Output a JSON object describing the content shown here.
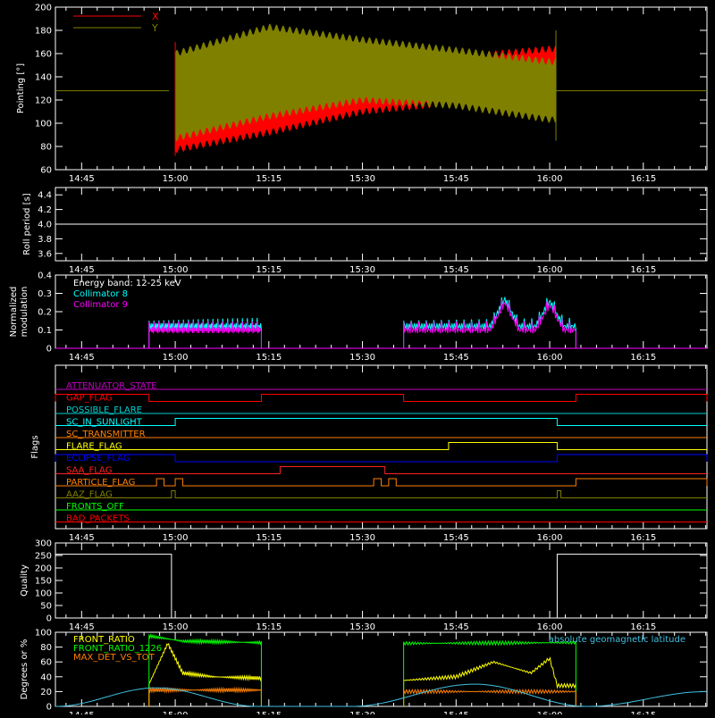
{
  "time_axis": {
    "ticks": [
      "14:45",
      "15:00",
      "15:15",
      "15:30",
      "15:45",
      "16:00",
      "16:15"
    ],
    "range": [
      "14:41",
      "16:25"
    ]
  },
  "colors": {
    "background": "#000000",
    "axes": "#ffffff",
    "red": "#ff0000",
    "olive": "#808000",
    "cyan": "#00ffff",
    "magenta": "#ff00ff",
    "blue": "#0000ff",
    "yellow": "#ffff00",
    "orange": "#ff8000",
    "green": "#00ff00",
    "purple": "#c000c0"
  },
  "chart_data": [
    {
      "type": "area",
      "ylabel": "Pointing [°]",
      "ylim": [
        60,
        200
      ],
      "yticks": [
        "60",
        "80",
        "100",
        "120",
        "140",
        "160",
        "180",
        "200"
      ],
      "legend": [
        "X",
        "Y"
      ],
      "legend_position": "top-left",
      "baseline": 128,
      "data_interval": [
        "14:59",
        "16:01"
      ],
      "series": [
        {
          "name": "X",
          "color": "#ff0000",
          "upper": [
            [
              15.0,
              135
            ],
            [
              15.25,
              140
            ],
            [
              15.5,
              150
            ],
            [
              15.75,
              157
            ],
            [
              16.0,
              164
            ]
          ],
          "lower": [
            [
              15.0,
              77
            ],
            [
              15.25,
              92
            ],
            [
              15.5,
              110
            ],
            [
              15.75,
              118
            ],
            [
              16.0,
              120
            ]
          ]
        },
        {
          "name": "Y",
          "color": "#808000",
          "upper": [
            [
              15.0,
              160
            ],
            [
              15.25,
              183
            ],
            [
              15.5,
              172
            ],
            [
              15.75,
              163
            ],
            [
              16.0,
              153
            ]
          ],
          "lower": [
            [
              15.0,
              87
            ],
            [
              15.25,
              106
            ],
            [
              15.5,
              120
            ],
            [
              15.75,
              115
            ],
            [
              16.0,
              103
            ]
          ]
        }
      ]
    },
    {
      "type": "line",
      "ylabel": "Roll period [s]",
      "ylim": [
        3.5,
        4.5
      ],
      "yticks": [
        "3.6",
        "3.8",
        "4.0",
        "4.2",
        "4.4"
      ],
      "series": [
        {
          "name": "",
          "values": [
            [
              14.68,
              4.0
            ],
            [
              16.42,
              4.0
            ]
          ]
        }
      ]
    },
    {
      "type": "line",
      "ylabel": [
        "Normalized",
        "modulation"
      ],
      "ylim": [
        0,
        0.4
      ],
      "yticks": [
        "0",
        "0.1",
        "0.2",
        "0.3",
        "0.4"
      ],
      "legend": [
        "Energy band: 12-25 keV",
        "Collimator 8",
        "Collimator 9"
      ],
      "legend_position": "top-left",
      "series": [
        {
          "name": "Collimator 8",
          "color": "#00ffff",
          "segments": [
            [
              14.93,
              15.23,
              0.12
            ],
            [
              15.61,
              16.07,
              0.12
            ]
          ]
        },
        {
          "name": "Collimator 9",
          "color": "#ff00ff",
          "segments": [
            [
              14.93,
              15.23,
              0.1
            ],
            [
              15.61,
              16.07,
              0.1
            ]
          ]
        }
      ],
      "peaks": [
        [
          15.88,
          0.25
        ],
        [
          16.0,
          0.23
        ]
      ]
    },
    {
      "type": "line",
      "ylabel": "Flags",
      "series": [
        {
          "name": "ATTENUATOR_STATE",
          "color": "#c000c0",
          "high": []
        },
        {
          "name": "GAP_FLAG",
          "color": "#ff0000",
          "high": [
            [
              14.68,
              14.93
            ],
            [
              15.23,
              15.61
            ],
            [
              16.07,
              16.42
            ]
          ]
        },
        {
          "name": "POSSIBLE_FLARE",
          "color": "#00d0d0",
          "high": []
        },
        {
          "name": "SC_IN_SUNLIGHT",
          "color": "#00ffff",
          "high": [
            [
              15.0,
              16.02
            ]
          ]
        },
        {
          "name": "SC_TRANSMITTER",
          "color": "#ff8000",
          "high": []
        },
        {
          "name": "FLARE_FLAG",
          "color": "#ffff00",
          "high": [
            [
              15.73,
              16.02
            ]
          ]
        },
        {
          "name": "ECLIPSE_FLAG",
          "color": "#0000ff",
          "high": [
            [
              14.68,
              15.0
            ],
            [
              16.02,
              16.42
            ]
          ]
        },
        {
          "name": "SAA_FLAG",
          "color": "#ff2020",
          "high": [
            [
              15.28,
              15.56
            ]
          ]
        },
        {
          "name": "PARTICLE_FLAG",
          "color": "#ff8000",
          "high": [
            [
              14.95,
              14.97
            ],
            [
              15.0,
              15.02
            ],
            [
              15.53,
              15.55
            ],
            [
              15.57,
              15.59
            ],
            [
              16.07,
              16.42
            ]
          ]
        },
        {
          "name": "AAZ_FLAG",
          "color": "#808000",
          "high": [
            [
              14.99,
              15.0
            ],
            [
              16.02,
              16.03
            ]
          ]
        },
        {
          "name": "FRONTS_OFF",
          "color": "#00ff00",
          "high": []
        },
        {
          "name": "BAD_PACKETS",
          "color": "#ff0000",
          "high": []
        }
      ]
    },
    {
      "type": "line",
      "ylabel": "Quality",
      "ylim": [
        0,
        300
      ],
      "yticks": [
        "0",
        "50",
        "100",
        "150",
        "200",
        "250",
        "300"
      ],
      "series": [
        {
          "name": "",
          "values": [
            [
              14.68,
              255
            ],
            [
              14.99,
              255
            ],
            [
              14.99,
              0
            ],
            [
              16.02,
              0
            ],
            [
              16.02,
              255
            ],
            [
              16.42,
              255
            ]
          ]
        }
      ]
    },
    {
      "type": "line",
      "ylabel": "Degrees or %",
      "ylim": [
        0,
        100
      ],
      "yticks": [
        "0",
        "20",
        "40",
        "60",
        "80",
        "100"
      ],
      "legend": [
        "FRONT_RATIO",
        "FRONT_RATIO_1226",
        "MAX_DET_VS_TOT",
        "absolute geomagnetic latitude"
      ],
      "series": [
        {
          "name": "FRONT_RATIO",
          "color": "#ffff00",
          "values": [
            [
              14.93,
              30
            ],
            [
              14.98,
              85
            ],
            [
              15.02,
              45
            ],
            [
              15.1,
              40
            ],
            [
              15.23,
              38
            ],
            [
              15.61,
              35
            ],
            [
              15.75,
              40
            ],
            [
              15.85,
              60
            ],
            [
              15.95,
              45
            ],
            [
              16.0,
              65
            ],
            [
              16.02,
              28
            ],
            [
              16.07,
              28
            ]
          ]
        },
        {
          "name": "FRONT_RATIO_1226",
          "color": "#00ff00",
          "values": [
            [
              14.93,
              95
            ],
            [
              15.02,
              88
            ],
            [
              15.23,
              86
            ],
            [
              15.61,
              85
            ],
            [
              16.07,
              86
            ]
          ]
        },
        {
          "name": "MAX_DET_VS_TOT",
          "color": "#ff8000",
          "values": [
            [
              14.93,
              22
            ],
            [
              15.23,
              22
            ],
            [
              15.61,
              20
            ],
            [
              16.07,
              20
            ]
          ]
        },
        {
          "name": "absolute geomagnetic latitude",
          "color": "#40c0e0",
          "values": [
            [
              14.68,
              0
            ],
            [
              14.95,
              25
            ],
            [
              15.22,
              0
            ],
            [
              15.47,
              0
            ],
            [
              15.8,
              30
            ],
            [
              16.1,
              0
            ],
            [
              16.42,
              20
            ]
          ]
        }
      ]
    }
  ]
}
